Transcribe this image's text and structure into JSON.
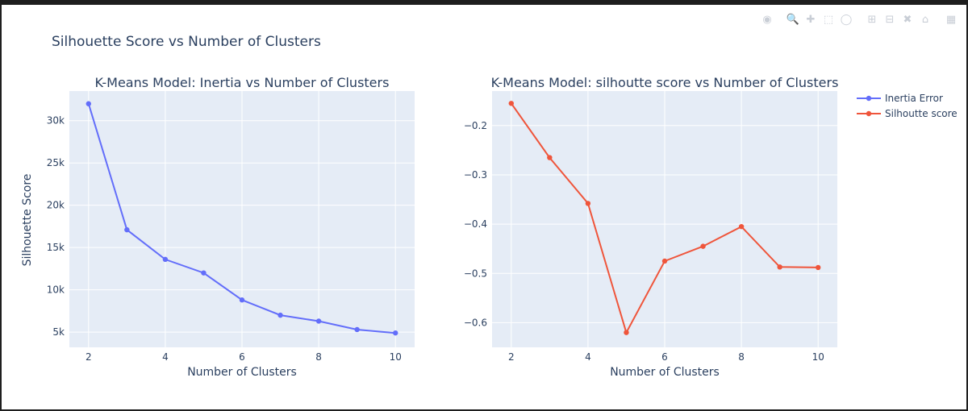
{
  "figure": {
    "title": "Silhouette Score vs Number of Clusters",
    "ylabel": "Silhouette Score"
  },
  "colors": {
    "plot_bg": "#e5ecf6",
    "grid": "#ffffff",
    "inertia": "#636efa",
    "silhouette": "#ef553b",
    "text": "#2a3f5f",
    "modebar": "#c9ced6"
  },
  "modebar": {
    "icons": [
      "camera-icon",
      "zoom-icon",
      "pan-icon",
      "box-select-icon",
      "lasso-icon",
      "zoom-in-icon",
      "zoom-out-icon",
      "autoscale-icon",
      "home-icon",
      "plotly-logo-icon"
    ]
  },
  "legend": {
    "placement": "top-right",
    "items": [
      {
        "name": "Inertia Error",
        "color": "#636efa"
      },
      {
        "name": "Silhoutte score",
        "color": "#ef553b"
      }
    ]
  },
  "chart_data": [
    {
      "type": "line",
      "title": "K-Means Model: Inertia vs Number of Clusters",
      "xlabel": "Number of Clusters",
      "ylabel": "Silhouette Score",
      "xlim": [
        1.5,
        10.5
      ],
      "ylim": [
        3200,
        33500
      ],
      "xticks": [
        2,
        4,
        6,
        8,
        10
      ],
      "xtick_labels": [
        "2",
        "4",
        "6",
        "8",
        "10"
      ],
      "yticks": [
        5000,
        10000,
        15000,
        20000,
        25000,
        30000
      ],
      "ytick_labels": [
        "5k",
        "10k",
        "15k",
        "20k",
        "25k",
        "30k"
      ],
      "grid": true,
      "series": [
        {
          "name": "Inertia Error",
          "color": "#636efa",
          "x": [
            2,
            3,
            4,
            5,
            6,
            7,
            8,
            9,
            10
          ],
          "y": [
            32000,
            17100,
            13600,
            12000,
            8800,
            7000,
            6300,
            5300,
            4900
          ]
        }
      ]
    },
    {
      "type": "line",
      "title": "K-Means Model: silhoutte score vs Number of Clusters",
      "xlabel": "Number of Clusters",
      "ylabel": "",
      "xlim": [
        1.5,
        10.5
      ],
      "ylim": [
        -0.65,
        -0.13
      ],
      "xticks": [
        2,
        4,
        6,
        8,
        10
      ],
      "xtick_labels": [
        "2",
        "4",
        "6",
        "8",
        "10"
      ],
      "yticks": [
        -0.6,
        -0.5,
        -0.4,
        -0.3,
        -0.2
      ],
      "ytick_labels": [
        "−0.6",
        "−0.5",
        "−0.4",
        "−0.3",
        "−0.2"
      ],
      "grid": true,
      "series": [
        {
          "name": "Silhoutte score",
          "color": "#ef553b",
          "x": [
            2,
            3,
            4,
            5,
            6,
            7,
            8,
            9,
            10
          ],
          "y": [
            -0.155,
            -0.265,
            -0.358,
            -0.62,
            -0.475,
            -0.445,
            -0.405,
            -0.487,
            -0.488
          ]
        }
      ]
    }
  ]
}
